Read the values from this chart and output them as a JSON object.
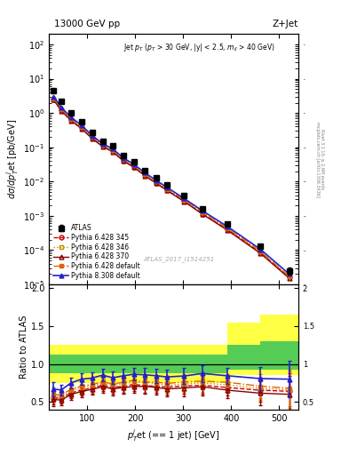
{
  "title_top": "13000 GeV pp",
  "title_right": "Z+Jet",
  "watermark": "ATLAS_2017_I1514251",
  "right_label": "mcplots.cern.ch [arXiv:1306.3436]",
  "right_label2": "Rivet 3.1.10, ≥ 2.6M events",
  "ylabel_main": "dσ/dp$_{T}^{j}$et [pb/GeV]",
  "ylabel_ratio": "Ratio to ATLAS",
  "pt_centers": [
    30,
    46,
    66,
    88,
    110,
    132,
    153,
    175,
    197,
    220,
    243,
    266,
    302,
    340,
    392,
    461,
    521
  ],
  "atlas_y": [
    4.5,
    2.2,
    1.0,
    0.55,
    0.27,
    0.15,
    0.11,
    0.058,
    0.037,
    0.021,
    0.013,
    0.0082,
    0.0038,
    0.0016,
    0.00058,
    0.00013,
    2.5e-05
  ],
  "atlas_yerr": [
    0.4,
    0.15,
    0.07,
    0.04,
    0.02,
    0.012,
    0.009,
    0.005,
    0.003,
    0.002,
    0.0012,
    0.0008,
    0.0004,
    0.00018,
    6e-05,
    2e-05,
    6e-06
  ],
  "p6_345_y": [
    2.5,
    1.2,
    0.62,
    0.36,
    0.185,
    0.108,
    0.076,
    0.041,
    0.027,
    0.015,
    0.0092,
    0.0057,
    0.0027,
    0.00115,
    0.0004,
    8.5e-05,
    1.6e-05
  ],
  "p6_346_y": [
    2.6,
    1.25,
    0.65,
    0.38,
    0.192,
    0.112,
    0.079,
    0.043,
    0.028,
    0.016,
    0.0096,
    0.0059,
    0.0028,
    0.0012,
    0.00042,
    8.8e-05,
    1.65e-05
  ],
  "p6_370_y": [
    2.4,
    1.15,
    0.6,
    0.35,
    0.18,
    0.105,
    0.074,
    0.04,
    0.026,
    0.0148,
    0.009,
    0.0055,
    0.0026,
    0.00112,
    0.00038,
    8e-05,
    1.5e-05
  ],
  "p6_def_y": [
    2.7,
    1.3,
    0.67,
    0.39,
    0.197,
    0.115,
    0.081,
    0.044,
    0.029,
    0.016,
    0.0099,
    0.0061,
    0.0029,
    0.00124,
    0.00044,
    9.2e-05,
    1.7e-05
  ],
  "p8_def_y": [
    3.0,
    1.45,
    0.75,
    0.44,
    0.22,
    0.128,
    0.09,
    0.049,
    0.032,
    0.018,
    0.011,
    0.0068,
    0.0032,
    0.0014,
    0.00049,
    0.000105,
    2e-05
  ],
  "ratio_band_edges": [
    20,
    46,
    66,
    88,
    110,
    132,
    153,
    175,
    197,
    220,
    243,
    266,
    290,
    315,
    340,
    392,
    461,
    540
  ],
  "ratio_yellow_lo": [
    0.75,
    0.75,
    0.75,
    0.75,
    0.75,
    0.75,
    0.75,
    0.75,
    0.75,
    0.75,
    0.75,
    0.75,
    0.75,
    0.75,
    0.75,
    0.85,
    0.85
  ],
  "ratio_yellow_hi": [
    1.25,
    1.25,
    1.25,
    1.25,
    1.25,
    1.25,
    1.25,
    1.25,
    1.25,
    1.25,
    1.25,
    1.25,
    1.25,
    1.25,
    1.25,
    1.55,
    1.65
  ],
  "ratio_green_lo": [
    0.88,
    0.88,
    0.88,
    0.88,
    0.88,
    0.88,
    0.88,
    0.88,
    0.88,
    0.88,
    0.88,
    0.88,
    0.88,
    0.88,
    0.88,
    0.92,
    0.92
  ],
  "ratio_green_hi": [
    1.12,
    1.12,
    1.12,
    1.12,
    1.12,
    1.12,
    1.12,
    1.12,
    1.12,
    1.12,
    1.12,
    1.12,
    1.12,
    1.12,
    1.12,
    1.25,
    1.3
  ],
  "color_p6_345": "#cc0000",
  "color_p6_346": "#cc8800",
  "color_p6_370": "#880000",
  "color_p6_def": "#dd6600",
  "color_p8_def": "#2222cc",
  "xlim": [
    20,
    540
  ],
  "ylim_main": [
    1e-05,
    200
  ],
  "ylim_ratio": [
    0.4,
    2.05
  ],
  "ratio_yticks": [
    0.5,
    1.0,
    1.5,
    2.0
  ]
}
